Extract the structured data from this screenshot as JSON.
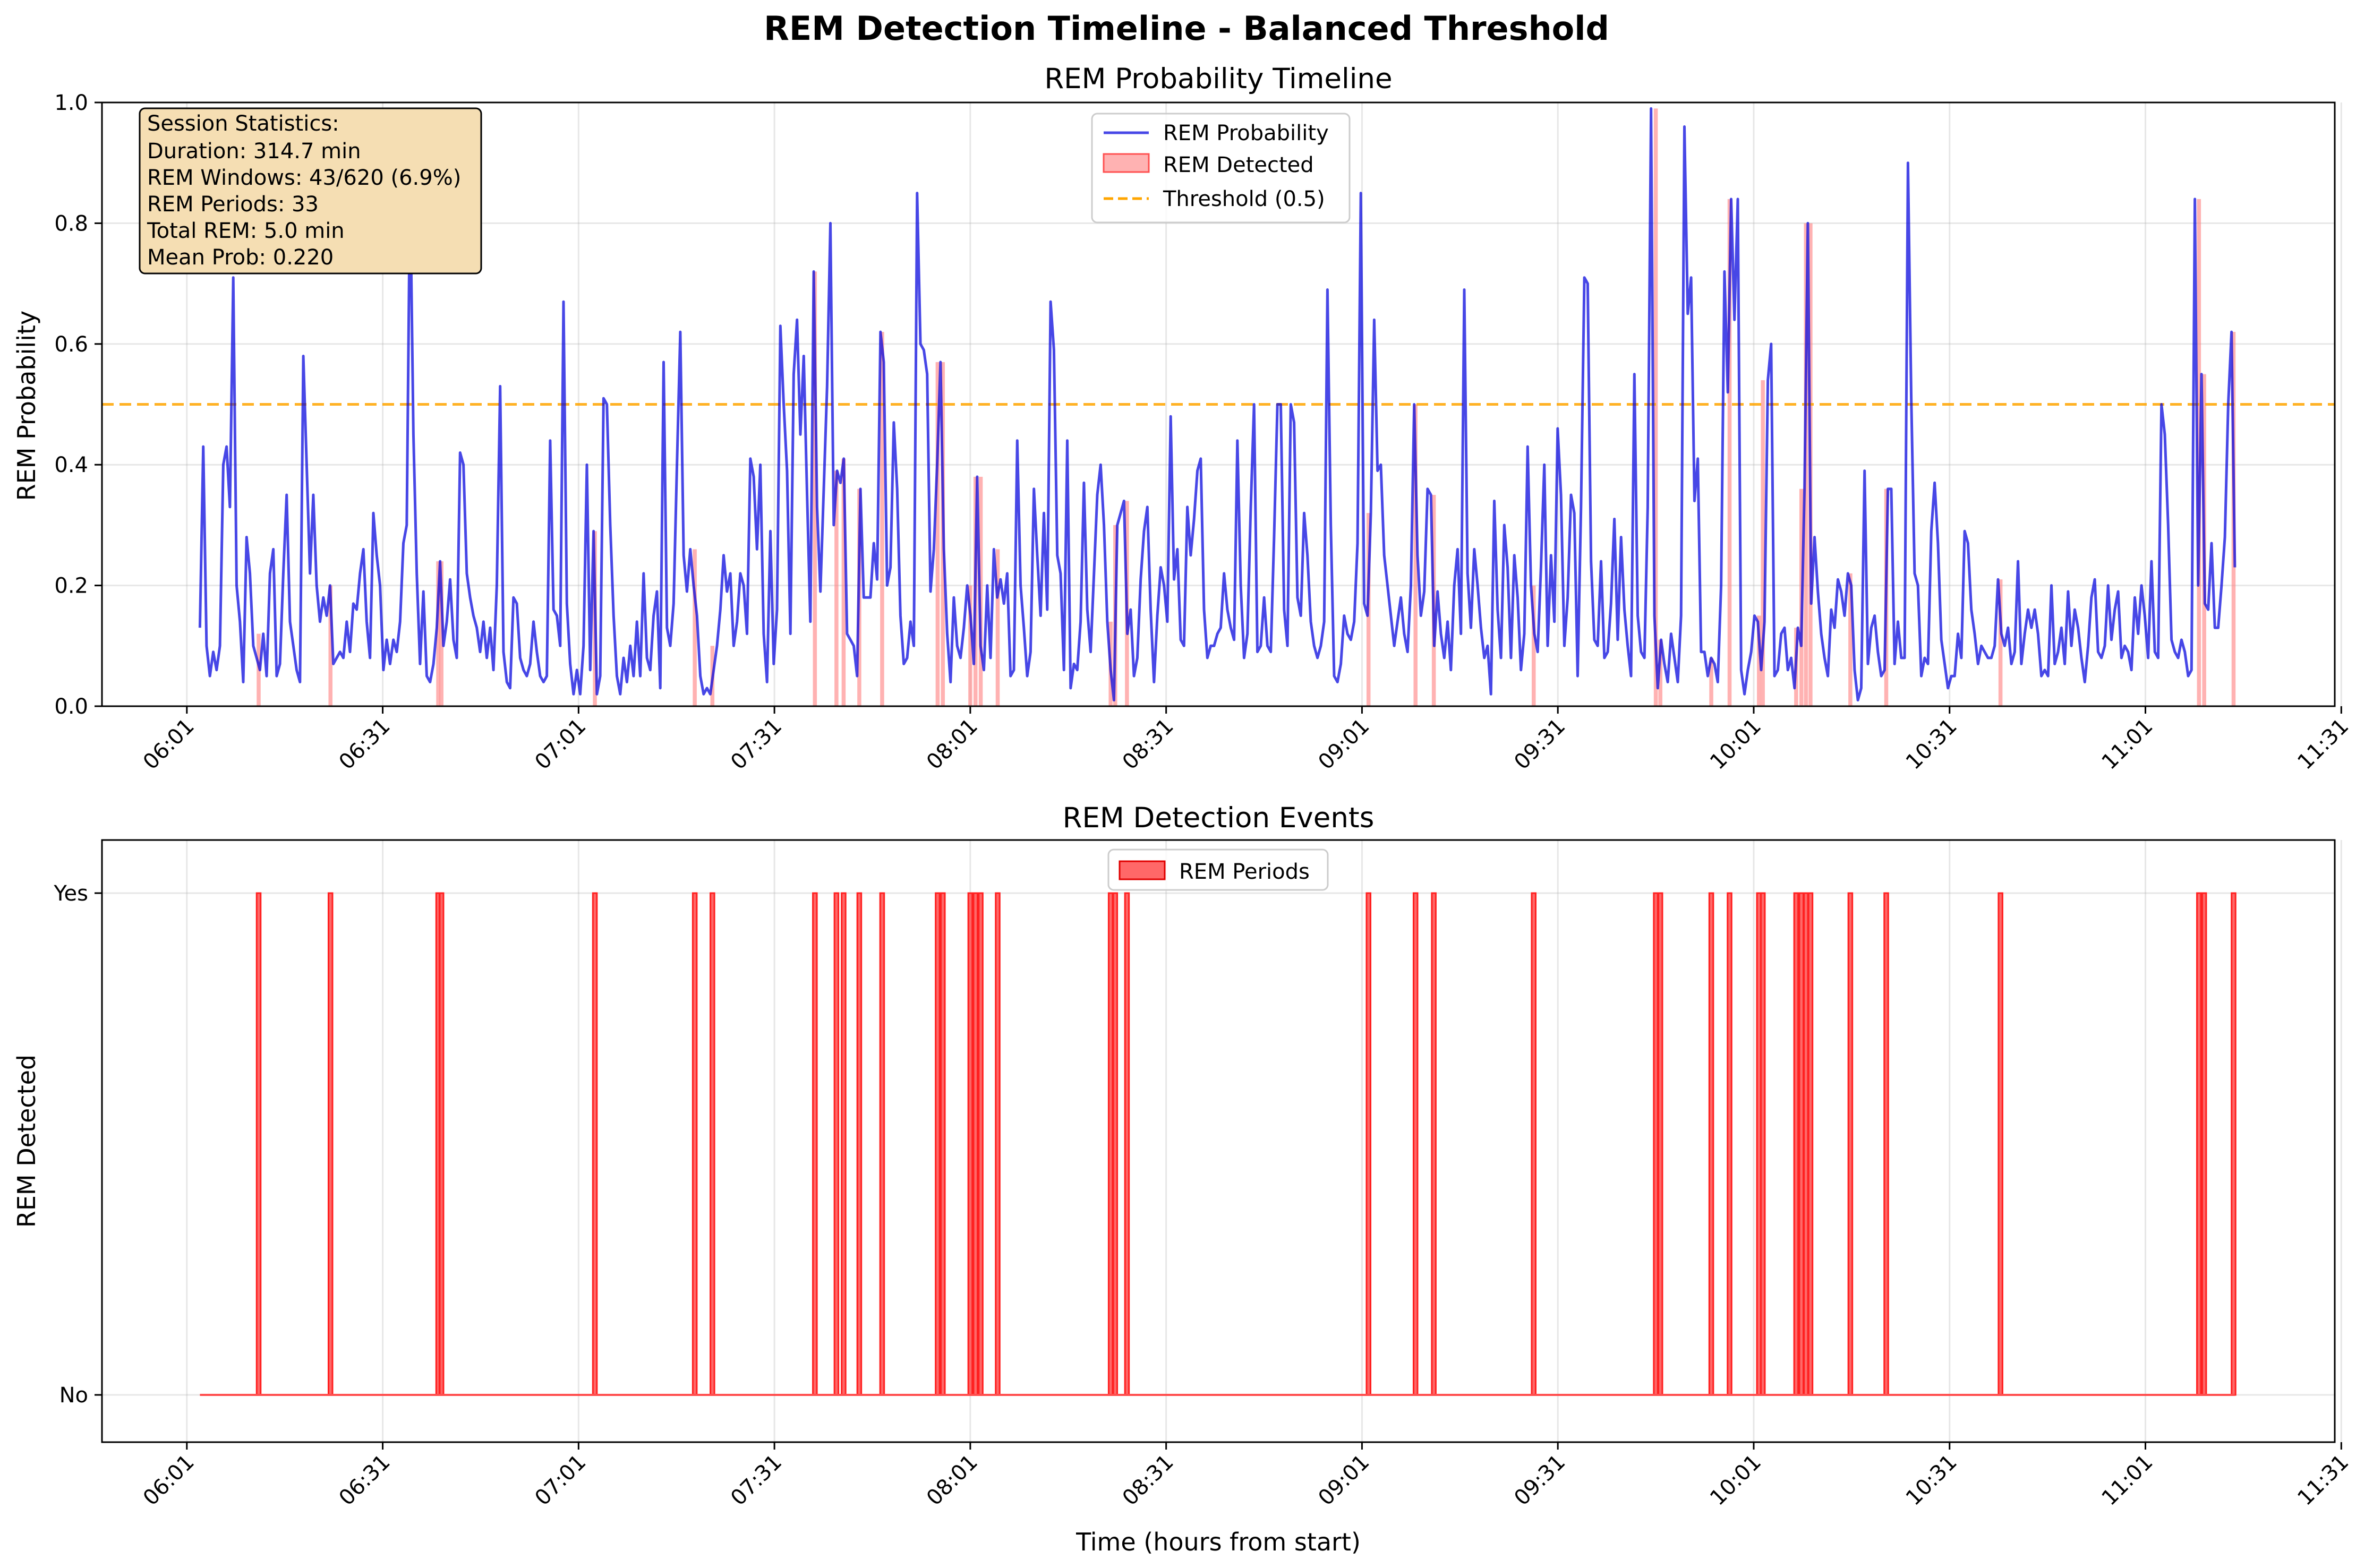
{
  "figure_title": "REM Detection Timeline - Balanced Threshold",
  "chart_data": [
    {
      "type": "line",
      "title": "REM Probability Timeline",
      "xlabel": "",
      "ylabel": "REM Probability",
      "x_unit": "minutes after 06:00",
      "xlim": [
        -12,
        330
      ],
      "ylim": [
        0,
        1.0
      ],
      "x_ticks": [
        {
          "label": "06:01",
          "minute": 1
        },
        {
          "label": "06:31",
          "minute": 31
        },
        {
          "label": "07:01",
          "minute": 61
        },
        {
          "label": "07:31",
          "minute": 91
        },
        {
          "label": "08:01",
          "minute": 121
        },
        {
          "label": "08:31",
          "minute": 151
        },
        {
          "label": "09:01",
          "minute": 181
        },
        {
          "label": "09:31",
          "minute": 211
        },
        {
          "label": "10:01",
          "minute": 241
        },
        {
          "label": "10:31",
          "minute": 271
        },
        {
          "label": "11:01",
          "minute": 301
        },
        {
          "label": "11:31",
          "minute": 331
        }
      ],
      "y_ticks": [
        "0.0",
        "0.2",
        "0.4",
        "0.6",
        "0.8",
        "1.0"
      ],
      "grid": true,
      "legend": {
        "placement": "upper-center",
        "entries": [
          "REM Probability",
          "REM Detected",
          "Threshold (0.5)"
        ]
      },
      "threshold": 0.5,
      "colors": {
        "probability": "#0000dd",
        "detected": "#ff7f7f",
        "threshold": "#ffa500"
      },
      "series_x_start": 3,
      "series_x_end": 314.7,
      "probability_values": [
        0.13,
        0.43,
        0.1,
        0.05,
        0.09,
        0.06,
        0.1,
        0.4,
        0.43,
        0.33,
        0.71,
        0.2,
        0.14,
        0.04,
        0.28,
        0.22,
        0.1,
        0.08,
        0.06,
        0.12,
        0.05,
        0.22,
        0.26,
        0.05,
        0.07,
        0.22,
        0.35,
        0.14,
        0.1,
        0.06,
        0.04,
        0.58,
        0.4,
        0.22,
        0.35,
        0.2,
        0.14,
        0.18,
        0.15,
        0.2,
        0.07,
        0.08,
        0.09,
        0.08,
        0.14,
        0.09,
        0.17,
        0.16,
        0.22,
        0.26,
        0.14,
        0.08,
        0.32,
        0.25,
        0.2,
        0.06,
        0.11,
        0.07,
        0.11,
        0.09,
        0.14,
        0.27,
        0.3,
        0.87,
        0.45,
        0.22,
        0.07,
        0.19,
        0.05,
        0.04,
        0.07,
        0.13,
        0.24,
        0.1,
        0.14,
        0.21,
        0.11,
        0.08,
        0.42,
        0.4,
        0.22,
        0.18,
        0.15,
        0.13,
        0.09,
        0.14,
        0.08,
        0.13,
        0.06,
        0.2,
        0.53,
        0.09,
        0.04,
        0.03,
        0.18,
        0.17,
        0.08,
        0.06,
        0.05,
        0.07,
        0.14,
        0.09,
        0.05,
        0.04,
        0.05,
        0.44,
        0.16,
        0.15,
        0.1,
        0.67,
        0.17,
        0.07,
        0.02,
        0.06,
        0.02,
        0.1,
        0.4,
        0.06,
        0.29,
        0.02,
        0.05,
        0.51,
        0.5,
        0.3,
        0.15,
        0.05,
        0.02,
        0.08,
        0.04,
        0.1,
        0.05,
        0.14,
        0.05,
        0.22,
        0.08,
        0.06,
        0.15,
        0.19,
        0.03,
        0.57,
        0.13,
        0.1,
        0.17,
        0.4,
        0.62,
        0.25,
        0.19,
        0.26,
        0.2,
        0.15,
        0.05,
        0.02,
        0.03,
        0.02,
        0.06,
        0.1,
        0.16,
        0.25,
        0.19,
        0.22,
        0.1,
        0.14,
        0.22,
        0.2,
        0.12,
        0.41,
        0.38,
        0.26,
        0.4,
        0.12,
        0.04,
        0.29,
        0.07,
        0.16,
        0.63,
        0.5,
        0.39,
        0.12,
        0.55,
        0.64,
        0.45,
        0.58,
        0.35,
        0.14,
        0.72,
        0.33,
        0.19,
        0.36,
        0.53,
        0.8,
        0.3,
        0.39,
        0.37,
        0.41,
        0.12,
        0.11,
        0.1,
        0.05,
        0.36,
        0.18,
        0.18,
        0.18,
        0.27,
        0.21,
        0.62,
        0.57,
        0.2,
        0.23,
        0.47,
        0.36,
        0.15,
        0.07,
        0.08,
        0.14,
        0.1,
        0.85,
        0.6,
        0.59,
        0.55,
        0.19,
        0.26,
        0.4,
        0.57,
        0.26,
        0.12,
        0.04,
        0.18,
        0.1,
        0.08,
        0.13,
        0.2,
        0.15,
        0.07,
        0.38,
        0.1,
        0.06,
        0.2,
        0.08,
        0.26,
        0.18,
        0.21,
        0.17,
        0.22,
        0.05,
        0.06,
        0.44,
        0.2,
        0.13,
        0.05,
        0.09,
        0.36,
        0.25,
        0.15,
        0.32,
        0.16,
        0.67,
        0.59,
        0.25,
        0.22,
        0.06,
        0.44,
        0.03,
        0.07,
        0.06,
        0.14,
        0.37,
        0.16,
        0.09,
        0.22,
        0.35,
        0.4,
        0.3,
        0.14,
        0.06,
        0.01,
        0.3,
        0.32,
        0.34,
        0.12,
        0.16,
        0.05,
        0.08,
        0.21,
        0.29,
        0.33,
        0.16,
        0.04,
        0.15,
        0.23,
        0.2,
        0.14,
        0.48,
        0.21,
        0.26,
        0.11,
        0.1,
        0.33,
        0.25,
        0.31,
        0.39,
        0.41,
        0.16,
        0.08,
        0.1,
        0.1,
        0.12,
        0.13,
        0.22,
        0.16,
        0.13,
        0.11,
        0.44,
        0.2,
        0.08,
        0.12,
        0.33,
        0.5,
        0.09,
        0.1,
        0.18,
        0.1,
        0.09,
        0.28,
        0.5,
        0.5,
        0.16,
        0.1,
        0.5,
        0.47,
        0.18,
        0.15,
        0.32,
        0.25,
        0.14,
        0.1,
        0.08,
        0.1,
        0.14,
        0.69,
        0.3,
        0.05,
        0.04,
        0.07,
        0.15,
        0.12,
        0.11,
        0.14,
        0.27,
        0.85,
        0.17,
        0.15,
        0.32,
        0.64,
        0.39,
        0.4,
        0.25,
        0.2,
        0.15,
        0.1,
        0.14,
        0.18,
        0.12,
        0.09,
        0.2,
        0.5,
        0.25,
        0.15,
        0.19,
        0.36,
        0.35,
        0.1,
        0.19,
        0.12,
        0.08,
        0.14,
        0.06,
        0.2,
        0.26,
        0.12,
        0.69,
        0.22,
        0.13,
        0.26,
        0.2,
        0.13,
        0.08,
        0.1,
        0.02,
        0.34,
        0.16,
        0.08,
        0.3,
        0.23,
        0.08,
        0.25,
        0.18,
        0.06,
        0.12,
        0.43,
        0.2,
        0.12,
        0.09,
        0.23,
        0.4,
        0.1,
        0.25,
        0.14,
        0.46,
        0.35,
        0.1,
        0.18,
        0.35,
        0.32,
        0.05,
        0.33,
        0.71,
        0.7,
        0.24,
        0.11,
        0.1,
        0.24,
        0.08,
        0.09,
        0.17,
        0.31,
        0.11,
        0.28,
        0.16,
        0.1,
        0.05,
        0.55,
        0.15,
        0.09,
        0.08,
        0.33,
        0.99,
        0.15,
        0.03,
        0.11,
        0.07,
        0.04,
        0.12,
        0.08,
        0.04,
        0.15,
        0.96,
        0.65,
        0.71,
        0.34,
        0.41,
        0.09,
        0.09,
        0.05,
        0.08,
        0.07,
        0.04,
        0.2,
        0.72,
        0.52,
        0.84,
        0.64,
        0.84,
        0.06,
        0.02,
        0.06,
        0.09,
        0.15,
        0.14,
        0.06,
        0.14,
        0.54,
        0.6,
        0.05,
        0.06,
        0.12,
        0.13,
        0.06,
        0.08,
        0.03,
        0.13,
        0.1,
        0.36,
        0.8,
        0.17,
        0.28,
        0.19,
        0.12,
        0.08,
        0.05,
        0.16,
        0.13,
        0.21,
        0.19,
        0.15,
        0.22,
        0.2,
        0.06,
        0.01,
        0.03,
        0.39,
        0.07,
        0.13,
        0.15,
        0.09,
        0.05,
        0.06,
        0.36,
        0.36,
        0.07,
        0.14,
        0.08,
        0.08,
        0.9,
        0.51,
        0.22,
        0.2,
        0.05,
        0.08,
        0.07,
        0.29,
        0.37,
        0.27,
        0.11,
        0.07,
        0.03,
        0.05,
        0.05,
        0.12,
        0.08,
        0.29,
        0.27,
        0.16,
        0.12,
        0.07,
        0.1,
        0.09,
        0.08,
        0.08,
        0.1,
        0.21,
        0.12,
        0.1,
        0.13,
        0.07,
        0.09,
        0.24,
        0.07,
        0.12,
        0.16,
        0.13,
        0.16,
        0.12,
        0.05,
        0.06,
        0.05,
        0.2,
        0.07,
        0.09,
        0.13,
        0.07,
        0.19,
        0.1,
        0.16,
        0.13,
        0.08,
        0.04,
        0.1,
        0.18,
        0.21,
        0.09,
        0.08,
        0.1,
        0.2,
        0.11,
        0.16,
        0.19,
        0.08,
        0.1,
        0.09,
        0.06,
        0.18,
        0.12,
        0.2,
        0.15,
        0.08,
        0.24,
        0.09,
        0.08,
        0.5,
        0.45,
        0.3,
        0.11,
        0.09,
        0.08,
        0.11,
        0.09,
        0.05,
        0.06,
        0.84,
        0.2,
        0.55,
        0.17,
        0.16,
        0.27,
        0.13,
        0.13,
        0.2,
        0.28,
        0.5,
        0.62,
        0.23
      ],
      "rem_detected_minutes": [
        12,
        23,
        39.5,
        40,
        63.5,
        78.8,
        81.5,
        97.2,
        100.5,
        101.6,
        104,
        107.5,
        116,
        116.8,
        121,
        121.8,
        122.6,
        125.2,
        142.5,
        143.2,
        145,
        182,
        189.2,
        192,
        207.3,
        226,
        226.7,
        234.5,
        237.3,
        241.8,
        242.4,
        247.5,
        248.3,
        249,
        249.7,
        255.8,
        261.3,
        278.8,
        309.2,
        310,
        314.5
      ],
      "stats_box": {
        "heading": "Session Statistics:",
        "lines": [
          "Duration: 314.7 min",
          "REM Windows: 43/620 (6.9%)",
          "REM Periods: 33",
          "Total REM: 5.0 min",
          "Mean Prob: 0.220"
        ]
      }
    },
    {
      "type": "bar",
      "title": "REM Detection Events",
      "xlabel": "Time (hours from start)",
      "ylabel": "REM Detected",
      "y_ticks": [
        "No",
        "Yes"
      ],
      "grid": true,
      "legend": {
        "placement": "upper-center",
        "entries": [
          "REM Periods"
        ]
      },
      "colors": {
        "periods": "#ff4d4d"
      }
    }
  ]
}
